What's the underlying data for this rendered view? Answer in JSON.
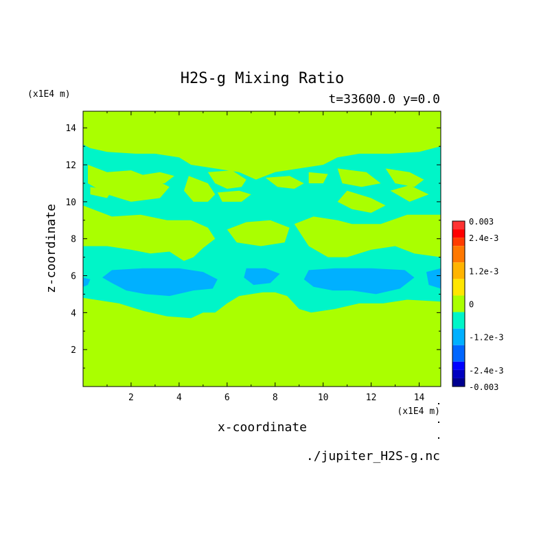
{
  "chart_data": {
    "type": "heatmap",
    "title": "H2S-g Mixing Ratio",
    "subtitle": "t=33600.0 y=0.0",
    "xlabel": "x-coordinate",
    "ylabel": "z-coordinate",
    "x_unit": "(x1E4 m)",
    "y_unit": "(x1E4 m)",
    "source_file": "./jupiter_H2S-g.nc",
    "xlim": [
      0,
      14.9
    ],
    "ylim": [
      0,
      14.9
    ],
    "x_ticks": [
      2,
      4,
      6,
      8,
      10,
      12,
      14
    ],
    "y_ticks": [
      2,
      4,
      6,
      8,
      10,
      12,
      14
    ],
    "background_level": 0,
    "regions": [
      {
        "level": -0.0006,
        "color": "#00f5c8",
        "points": [
          [
            0,
            13.1
          ],
          [
            0.3,
            12.9
          ],
          [
            1,
            12.7
          ],
          [
            2.2,
            12.6
          ],
          [
            3,
            12.6
          ],
          [
            4,
            12.4
          ],
          [
            4.5,
            12.0
          ],
          [
            5.5,
            11.8
          ],
          [
            6.5,
            11.6
          ],
          [
            7.2,
            11.2
          ],
          [
            8,
            11.6
          ],
          [
            9,
            11.8
          ],
          [
            10,
            12.0
          ],
          [
            10.6,
            12.4
          ],
          [
            11.5,
            12.6
          ],
          [
            12.8,
            12.6
          ],
          [
            14,
            12.7
          ],
          [
            14.9,
            13.0
          ],
          [
            14.9,
            4.6
          ],
          [
            13.5,
            4.7
          ],
          [
            12.5,
            4.5
          ],
          [
            11.5,
            4.5
          ],
          [
            10.5,
            4.2
          ],
          [
            9.5,
            4.0
          ],
          [
            9,
            4.2
          ],
          [
            8.5,
            4.9
          ],
          [
            8,
            5.1
          ],
          [
            7.5,
            5.1
          ],
          [
            7,
            5.0
          ],
          [
            6.5,
            4.9
          ],
          [
            6,
            4.5
          ],
          [
            5.5,
            4.0
          ],
          [
            5,
            4.0
          ],
          [
            4.5,
            3.7
          ],
          [
            3.5,
            3.8
          ],
          [
            2.5,
            4.1
          ],
          [
            1.5,
            4.5
          ],
          [
            0.5,
            4.7
          ],
          [
            0,
            4.8
          ]
        ]
      },
      {
        "level": 0,
        "color": "#aaff00",
        "points": [
          [
            0.2,
            12.0
          ],
          [
            1,
            11.6
          ],
          [
            2,
            11.7
          ],
          [
            3,
            11.2
          ],
          [
            3.6,
            10.8
          ],
          [
            3.2,
            10.2
          ],
          [
            2,
            10.0
          ],
          [
            1,
            10.4
          ],
          [
            0.2,
            11.0
          ]
        ]
      },
      {
        "level": 0,
        "color": "#aaff00",
        "points": [
          [
            2.2,
            11.4
          ],
          [
            3.2,
            11.6
          ],
          [
            3.8,
            11.4
          ],
          [
            3.4,
            11.0
          ],
          [
            2.6,
            11.0
          ]
        ]
      },
      {
        "level": 0,
        "color": "#aaff00",
        "points": [
          [
            4.4,
            11.4
          ],
          [
            5.2,
            11.0
          ],
          [
            5.5,
            10.4
          ],
          [
            5.2,
            10.0
          ],
          [
            4.6,
            10.0
          ],
          [
            4.2,
            10.6
          ]
        ]
      },
      {
        "level": 0,
        "color": "#aaff00",
        "points": [
          [
            5.2,
            11.6
          ],
          [
            6.2,
            11.7
          ],
          [
            6.8,
            11.2
          ],
          [
            6.6,
            10.8
          ],
          [
            6.0,
            10.7
          ],
          [
            5.5,
            11.0
          ]
        ]
      },
      {
        "level": 0,
        "color": "#aaff00",
        "points": [
          [
            7.6,
            11.3
          ],
          [
            8.6,
            11.4
          ],
          [
            9.2,
            11.0
          ],
          [
            8.8,
            10.7
          ],
          [
            8.1,
            10.8
          ]
        ]
      },
      {
        "level": 0,
        "color": "#aaff00",
        "points": [
          [
            9.4,
            11.6
          ],
          [
            10.2,
            11.5
          ],
          [
            10.0,
            11.0
          ],
          [
            9.4,
            11.0
          ]
        ]
      },
      {
        "level": 0,
        "color": "#aaff00",
        "points": [
          [
            10.6,
            11.8
          ],
          [
            11.8,
            11.6
          ],
          [
            12.4,
            11.0
          ],
          [
            11.6,
            10.8
          ],
          [
            10.8,
            11.0
          ]
        ]
      },
      {
        "level": 0,
        "color": "#aaff00",
        "points": [
          [
            11.0,
            10.6
          ],
          [
            12.0,
            10.2
          ],
          [
            12.6,
            9.8
          ],
          [
            12.0,
            9.4
          ],
          [
            11.2,
            9.6
          ],
          [
            10.6,
            10.0
          ]
        ]
      },
      {
        "level": 0,
        "color": "#aaff00",
        "points": [
          [
            12.6,
            11.8
          ],
          [
            13.6,
            11.6
          ],
          [
            14.2,
            11.2
          ],
          [
            13.8,
            10.8
          ],
          [
            13.0,
            11.0
          ]
        ]
      },
      {
        "level": 0,
        "color": "#aaff00",
        "points": [
          [
            0,
            9.8
          ],
          [
            1.2,
            9.2
          ],
          [
            2.4,
            9.3
          ],
          [
            3.5,
            9.0
          ],
          [
            4.5,
            9.0
          ],
          [
            5.2,
            8.6
          ],
          [
            5.5,
            8.0
          ],
          [
            5.0,
            7.5
          ],
          [
            4.6,
            7.0
          ],
          [
            4.2,
            6.8
          ],
          [
            3.6,
            7.3
          ],
          [
            2.8,
            7.2
          ],
          [
            2.0,
            7.4
          ],
          [
            1.0,
            7.6
          ],
          [
            0,
            7.6
          ]
        ]
      },
      {
        "level": 0,
        "color": "#aaff00",
        "points": [
          [
            0.3,
            10.8
          ],
          [
            1.2,
            10.6
          ],
          [
            1.0,
            10.2
          ],
          [
            0.3,
            10.4
          ]
        ]
      },
      {
        "level": 0,
        "color": "#aaff00",
        "points": [
          [
            5.6,
            10.5
          ],
          [
            6.5,
            10.6
          ],
          [
            7.0,
            10.4
          ],
          [
            6.6,
            10.0
          ],
          [
            5.8,
            10.0
          ]
        ]
      },
      {
        "level": 0,
        "color": "#aaff00",
        "points": [
          [
            6.0,
            8.5
          ],
          [
            6.8,
            8.9
          ],
          [
            7.8,
            9.0
          ],
          [
            8.6,
            8.6
          ],
          [
            8.4,
            7.8
          ],
          [
            7.4,
            7.6
          ],
          [
            6.4,
            7.8
          ]
        ]
      },
      {
        "level": 0,
        "color": "#aaff00",
        "points": [
          [
            8.8,
            8.8
          ],
          [
            9.6,
            9.2
          ],
          [
            10.6,
            9.0
          ],
          [
            11.2,
            8.8
          ],
          [
            12.4,
            8.8
          ],
          [
            13.5,
            9.3
          ],
          [
            14.9,
            9.3
          ],
          [
            14.9,
            7.0
          ],
          [
            13.8,
            7.2
          ],
          [
            13.0,
            7.6
          ],
          [
            12.0,
            7.4
          ],
          [
            11.0,
            7.0
          ],
          [
            10.2,
            7.0
          ],
          [
            9.4,
            7.6
          ]
        ]
      },
      {
        "level": 0,
        "color": "#aaff00",
        "points": [
          [
            12.8,
            10.6
          ],
          [
            13.6,
            10.9
          ],
          [
            14.4,
            10.4
          ],
          [
            13.6,
            10.0
          ]
        ]
      },
      {
        "level": 0,
        "color": "#aaff00",
        "points": [
          [
            12.4,
            8.6
          ],
          [
            13.6,
            8.6
          ],
          [
            14.2,
            8.2
          ],
          [
            13.2,
            8.0
          ]
        ]
      },
      {
        "level": -0.0012,
        "color": "#00b0ff",
        "points": [
          [
            1.2,
            6.3
          ],
          [
            2.5,
            6.4
          ],
          [
            4.0,
            6.4
          ],
          [
            5.0,
            6.2
          ],
          [
            5.6,
            5.8
          ],
          [
            5.4,
            5.3
          ],
          [
            4.6,
            5.2
          ],
          [
            3.6,
            4.9
          ],
          [
            2.6,
            5.0
          ],
          [
            1.8,
            5.2
          ],
          [
            1.2,
            5.6
          ],
          [
            0.8,
            5.9
          ]
        ]
      },
      {
        "level": -0.0012,
        "color": "#00b0ff",
        "points": [
          [
            6.8,
            6.4
          ],
          [
            7.6,
            6.4
          ],
          [
            8.2,
            6.1
          ],
          [
            7.8,
            5.6
          ],
          [
            7.1,
            5.5
          ],
          [
            6.7,
            5.9
          ]
        ]
      },
      {
        "level": -0.0012,
        "color": "#00b0ff",
        "points": [
          [
            9.4,
            6.3
          ],
          [
            10.5,
            6.4
          ],
          [
            12.0,
            6.4
          ],
          [
            13.4,
            6.3
          ],
          [
            13.8,
            5.9
          ],
          [
            13.2,
            5.3
          ],
          [
            12.2,
            5.0
          ],
          [
            11.2,
            5.2
          ],
          [
            10.4,
            5.2
          ],
          [
            9.6,
            5.4
          ],
          [
            9.2,
            5.8
          ]
        ]
      },
      {
        "level": -0.0012,
        "color": "#00b0ff",
        "points": [
          [
            14.3,
            6.2
          ],
          [
            14.9,
            6.4
          ],
          [
            14.9,
            5.3
          ],
          [
            14.4,
            5.5
          ]
        ]
      },
      {
        "level": -0.0012,
        "color": "#00b0ff",
        "points": [
          [
            0,
            5.9
          ],
          [
            0.3,
            5.8
          ],
          [
            0.2,
            5.5
          ],
          [
            0,
            5.4
          ]
        ]
      }
    ],
    "colorbar": {
      "range": [
        -0.003,
        0.003
      ],
      "labels": [
        "0.003",
        "2.4e-3",
        "1.2e-3",
        "0",
        "-1.2e-3",
        "-2.4e-3",
        "-0.003"
      ],
      "label_values": [
        0.003,
        0.0024,
        0.0012,
        0,
        -0.0012,
        -0.0024,
        -0.003
      ],
      "bands": [
        {
          "from": 0.0027,
          "to": 0.003,
          "color": "#ff3232"
        },
        {
          "from": 0.0024,
          "to": 0.0027,
          "color": "#ff0000"
        },
        {
          "from": 0.0021,
          "to": 0.0024,
          "color": "#ff3c00"
        },
        {
          "from": 0.0015,
          "to": 0.0021,
          "color": "#ff7800"
        },
        {
          "from": 0.0009,
          "to": 0.0015,
          "color": "#ffb400"
        },
        {
          "from": 0.0003,
          "to": 0.0009,
          "color": "#ffe600"
        },
        {
          "from": -0.0003,
          "to": 0.0003,
          "color": "#aaff00"
        },
        {
          "from": -0.0009,
          "to": -0.0003,
          "color": "#00f5c8"
        },
        {
          "from": -0.0015,
          "to": -0.0009,
          "color": "#00b0ff"
        },
        {
          "from": -0.0021,
          "to": -0.0015,
          "color": "#0066ff"
        },
        {
          "from": -0.0024,
          "to": -0.0021,
          "color": "#0000ff"
        },
        {
          "from": -0.0027,
          "to": -0.0024,
          "color": "#0000c0"
        },
        {
          "from": -0.003,
          "to": -0.0027,
          "color": "#000090"
        }
      ]
    },
    "grid": false
  }
}
